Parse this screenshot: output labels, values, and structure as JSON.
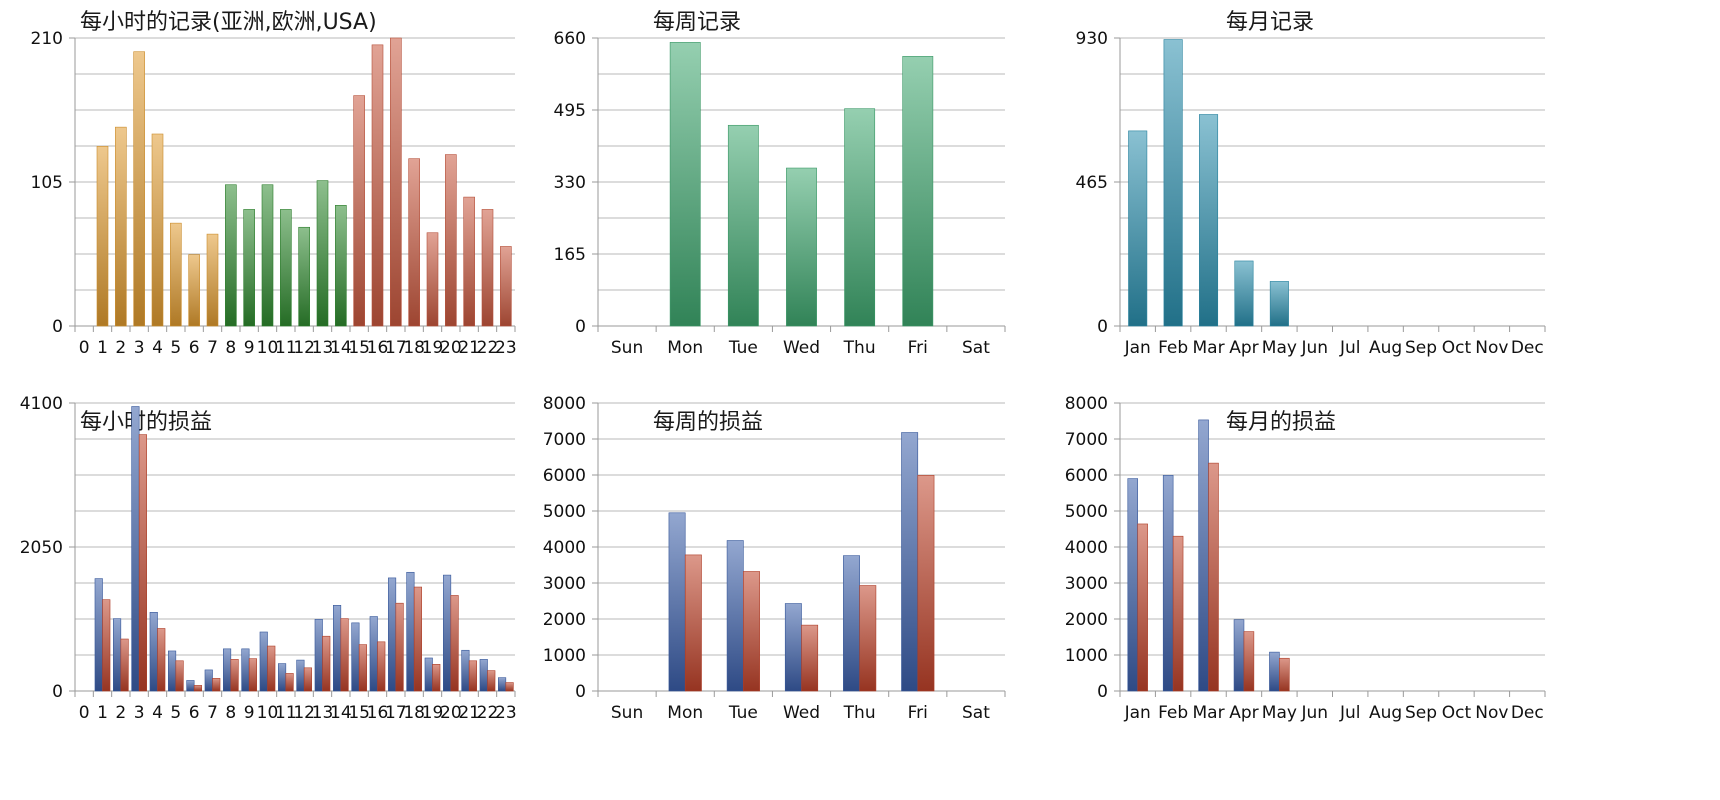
{
  "chart_data": [
    {
      "id": "hourly-records",
      "type": "bar",
      "title": "每小时的记录(亚洲,欧洲,USA)",
      "categories": [
        "0",
        "1",
        "2",
        "3",
        "4",
        "5",
        "6",
        "7",
        "8",
        "9",
        "10",
        "11",
        "12",
        "13",
        "14",
        "15",
        "16",
        "17",
        "18",
        "19",
        "20",
        "21",
        "22",
        "23"
      ],
      "series": [
        {
          "values": [
            0,
            131,
            145,
            200,
            140,
            75,
            52,
            67,
            103,
            85,
            103,
            85,
            72,
            106,
            88,
            168,
            205,
            210,
            122,
            68,
            125,
            94,
            85,
            58
          ]
        }
      ],
      "ylim": [
        0,
        210
      ],
      "yticks": [
        0,
        105,
        210
      ],
      "grid": true,
      "bar_colors": [
        "#e09b30",
        "#e09b30",
        "#e09b30",
        "#e09b30",
        "#e09b30",
        "#e09b30",
        "#e09b30",
        "#e09b30",
        "#2f8a2f",
        "#2f8a2f",
        "#2f8a2f",
        "#2f8a2f",
        "#2f8a2f",
        "#2f8a2f",
        "#2f8a2f",
        "#c9583f",
        "#c9583f",
        "#c9583f",
        "#c9583f",
        "#c9583f",
        "#c9583f",
        "#c9583f",
        "#c9583f",
        "#c9583f"
      ]
    },
    {
      "id": "weekly-records",
      "type": "bar",
      "title": "每周记录",
      "categories": [
        "Sun",
        "Mon",
        "Tue",
        "Wed",
        "Thu",
        "Fri",
        "Sat"
      ],
      "series": [
        {
          "values": [
            0,
            650,
            460,
            362,
            498,
            618,
            0
          ],
          "color": "#3fa870"
        }
      ],
      "ylim": [
        0,
        660
      ],
      "yticks": [
        0,
        165,
        330,
        495,
        660
      ],
      "grid": true
    },
    {
      "id": "monthly-records",
      "type": "bar",
      "title": "每月记录",
      "categories": [
        "Jan",
        "Feb",
        "Mar",
        "Apr",
        "May",
        "Jun",
        "Jul",
        "Aug",
        "Sep",
        "Oct",
        "Nov",
        "Dec"
      ],
      "series": [
        {
          "values": [
            630,
            925,
            683,
            210,
            144,
            0,
            0,
            0,
            0,
            0,
            0,
            0
          ],
          "color": "#2a8fae"
        }
      ],
      "ylim": [
        0,
        930
      ],
      "yticks": [
        0,
        465,
        930
      ],
      "grid": true
    },
    {
      "id": "hourly-profit",
      "type": "bar",
      "title": "每小时的损益",
      "categories": [
        "0",
        "1",
        "2",
        "3",
        "4",
        "5",
        "6",
        "7",
        "8",
        "9",
        "10",
        "11",
        "12",
        "13",
        "14",
        "15",
        "16",
        "17",
        "18",
        "19",
        "20",
        "21",
        "22",
        "23"
      ],
      "series": [
        {
          "values": [
            0,
            1600,
            1030,
            4050,
            1120,
            570,
            150,
            300,
            600,
            600,
            840,
            390,
            440,
            1020,
            1220,
            970,
            1060,
            1610,
            1690,
            470,
            1650,
            580,
            450,
            190
          ],
          "color": "#3b5faa"
        },
        {
          "values": [
            0,
            1300,
            740,
            3650,
            890,
            430,
            80,
            180,
            450,
            460,
            640,
            250,
            330,
            780,
            1030,
            660,
            700,
            1250,
            1480,
            380,
            1360,
            430,
            290,
            120
          ],
          "color": "#c0432a"
        }
      ],
      "ylim": [
        0,
        4100
      ],
      "yticks": [
        0,
        2050,
        4100
      ],
      "grid": true
    },
    {
      "id": "weekly-profit",
      "type": "bar",
      "title": "每周的损益",
      "categories": [
        "Sun",
        "Mon",
        "Tue",
        "Wed",
        "Thu",
        "Fri",
        "Sat"
      ],
      "series": [
        {
          "values": [
            0,
            4950,
            4180,
            2430,
            3760,
            7180,
            0
          ],
          "color": "#3b5faa"
        },
        {
          "values": [
            0,
            3780,
            3320,
            1830,
            2930,
            5990,
            0
          ],
          "color": "#c0432a"
        }
      ],
      "ylim": [
        0,
        8000
      ],
      "yticks": [
        0,
        1000,
        2000,
        3000,
        4000,
        5000,
        6000,
        7000,
        8000
      ],
      "grid": true
    },
    {
      "id": "monthly-profit",
      "type": "bar",
      "title": "每月的损益",
      "categories": [
        "Jan",
        "Feb",
        "Mar",
        "Apr",
        "May",
        "Jun",
        "Jul",
        "Aug",
        "Sep",
        "Oct",
        "Nov",
        "Dec"
      ],
      "series": [
        {
          "values": [
            5900,
            5990,
            7530,
            1980,
            1080,
            0,
            0,
            0,
            0,
            0,
            0,
            0
          ],
          "color": "#3b5faa"
        },
        {
          "values": [
            4640,
            4300,
            6330,
            1650,
            910,
            0,
            0,
            0,
            0,
            0,
            0,
            0
          ],
          "color": "#c0432a"
        }
      ],
      "ylim": [
        0,
        8000
      ],
      "yticks": [
        0,
        1000,
        2000,
        3000,
        4000,
        5000,
        6000,
        7000,
        8000
      ],
      "grid": true
    }
  ]
}
